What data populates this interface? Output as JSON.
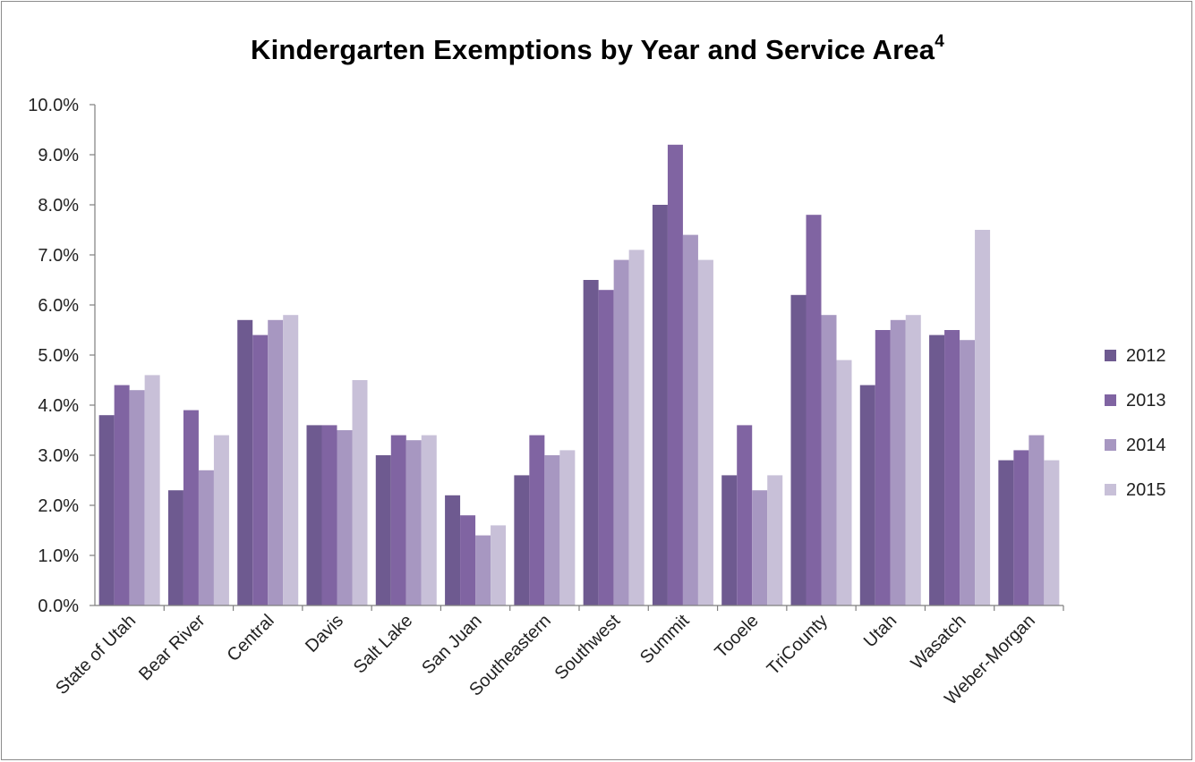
{
  "chart_data": {
    "type": "bar",
    "title": "Kindergarten Exemptions by Year and Service Area",
    "title_superscript": "4",
    "xlabel": "",
    "ylabel": "",
    "ylim": [
      0,
      10
    ],
    "y_ticks": [
      "0.0%",
      "1.0%",
      "2.0%",
      "3.0%",
      "4.0%",
      "5.0%",
      "6.0%",
      "7.0%",
      "8.0%",
      "9.0%",
      "10.0%"
    ],
    "grid": false,
    "legend_position": "right",
    "categories": [
      "State of Utah",
      "Bear River",
      "Central",
      "Davis",
      "Salt Lake",
      "San Juan",
      "Southeastern",
      "Southwest",
      "Summit",
      "Tooele",
      "TriCounty",
      "Utah",
      "Wasatch",
      "Weber-Morgan"
    ],
    "series": [
      {
        "name": "2012",
        "color": "#6e5a90",
        "values": [
          3.8,
          2.3,
          5.7,
          3.6,
          3.0,
          2.2,
          2.6,
          6.5,
          8.0,
          2.6,
          6.2,
          4.4,
          5.4,
          2.9
        ]
      },
      {
        "name": "2013",
        "color": "#8064a2",
        "values": [
          4.4,
          3.9,
          5.4,
          3.6,
          3.4,
          1.8,
          3.4,
          6.3,
          9.2,
          3.6,
          7.8,
          5.5,
          5.5,
          3.1
        ]
      },
      {
        "name": "2014",
        "color": "#a797c1",
        "values": [
          4.3,
          2.7,
          5.7,
          3.5,
          3.3,
          1.4,
          3.0,
          6.9,
          7.4,
          2.3,
          5.8,
          5.7,
          5.3,
          3.4
        ]
      },
      {
        "name": "2015",
        "color": "#c8c0d8",
        "values": [
          4.6,
          3.4,
          5.8,
          4.5,
          3.4,
          1.6,
          3.1,
          7.1,
          6.9,
          2.6,
          4.9,
          5.8,
          7.5,
          2.9
        ]
      }
    ]
  }
}
